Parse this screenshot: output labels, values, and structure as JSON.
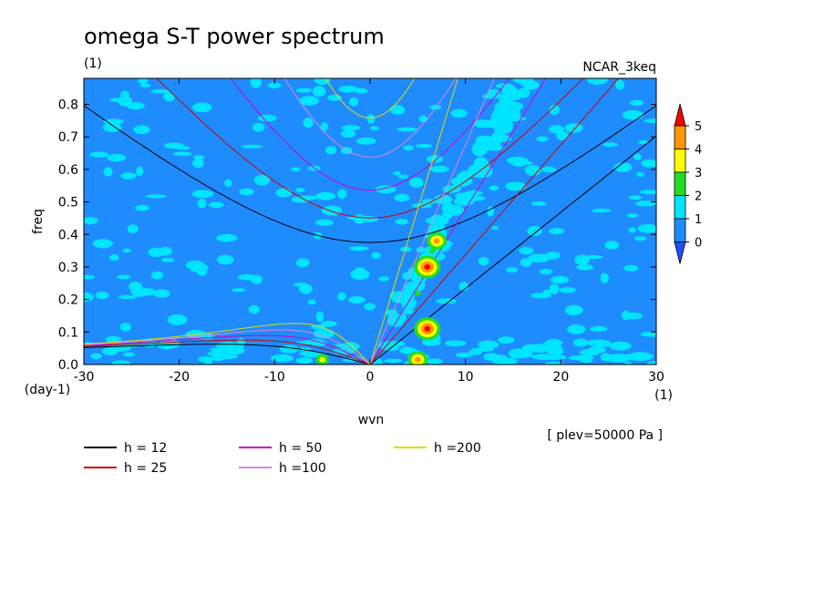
{
  "chart_data": {
    "type": "heatmap",
    "title": "omega S-T power spectrum",
    "subtitle_units": "(1)",
    "model_label": "NCAR_3keq",
    "xlabel": "wvn",
    "ylabel": "freq",
    "y_units": "(day-1)",
    "x_units": "(1)",
    "level_note": "[ plev=50000 Pa ]",
    "xlim": [
      -30,
      30
    ],
    "ylim": [
      0,
      0.88
    ],
    "x_ticks": [
      -30,
      -20,
      -10,
      0,
      10,
      20,
      30
    ],
    "x_tick_labels": [
      "-30",
      "-20",
      "-10",
      "0",
      "10",
      "20",
      "30"
    ],
    "y_ticks": [
      0.0,
      0.1,
      0.2,
      0.3,
      0.4,
      0.5,
      0.6,
      0.7,
      0.8
    ],
    "y_tick_labels": [
      "0.0",
      "0.1",
      "0.2",
      "0.3",
      "0.4",
      "0.5",
      "0.6",
      "0.7",
      "0.8"
    ],
    "colorbar": {
      "levels": [
        0,
        1,
        2,
        3,
        4,
        5
      ],
      "level_labels": [
        "0",
        "1",
        "2",
        "3",
        "4",
        "5"
      ],
      "colors": [
        "#1e8cff",
        "#00e5ff",
        "#22dd22",
        "#ffff00",
        "#ff9900",
        "#ff0000"
      ]
    },
    "dispersion_curves": [
      {
        "name": "h = 12",
        "h": 12,
        "color": "#000000"
      },
      {
        "name": "h = 25",
        "h": 25,
        "color": "#cc0000"
      },
      {
        "name": "h = 50",
        "h": 50,
        "color": "#cc00cc"
      },
      {
        "name": "h =100",
        "h": 100,
        "color": "#dd88dd"
      },
      {
        "name": "h =200",
        "h": 200,
        "color": "#dddd00"
      }
    ],
    "hotspots": [
      {
        "wvn": 6,
        "freq": 0.3,
        "level": 5
      },
      {
        "wvn": 7,
        "freq": 0.38,
        "level": 4
      },
      {
        "wvn": 6,
        "freq": 0.11,
        "level": 5
      },
      {
        "wvn": 5,
        "freq": 0.015,
        "level": 4
      },
      {
        "wvn": -5,
        "freq": 0.015,
        "level": 3
      },
      {
        "wvn": 6.5,
        "freq": 0.35,
        "level": 2
      },
      {
        "wvn": 5,
        "freq": 0.22,
        "level": 2
      }
    ]
  }
}
